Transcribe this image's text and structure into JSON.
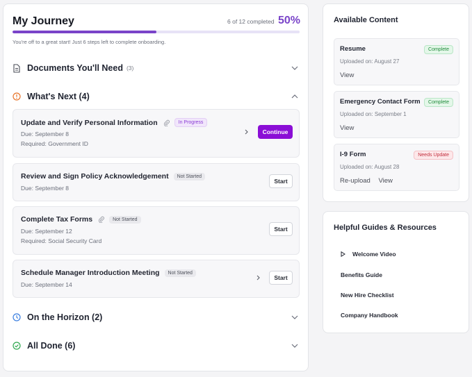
{
  "journey": {
    "title": "My Journey",
    "completed_text": "6 of 12 completed",
    "percent_label": "50%",
    "progress_fraction": 0.5,
    "subtitle": "You're off to a great start! Just 6 steps left to complete onboarding."
  },
  "sections": {
    "documents": {
      "label": "Documents You'll Need",
      "count": "(3)"
    },
    "whats_next": {
      "label": "What's Next (4)"
    },
    "horizon": {
      "label": "On the Horizon (2)"
    },
    "done": {
      "label": "All Done (6)"
    }
  },
  "tasks": [
    {
      "title": "Update and Verify Personal Information",
      "status": "In Progress",
      "due": "Due: September 8",
      "required": "Required: Government ID",
      "button": "Continue"
    },
    {
      "title": "Review and Sign Policy Acknowledgement",
      "status": "Not Started",
      "due": "Due: September 8",
      "button": "Start"
    },
    {
      "title": "Complete Tax Forms",
      "status": "Not Started",
      "due": "Due: September 12",
      "required": "Required: Social Security Card",
      "button": "Start"
    },
    {
      "title": "Schedule Manager Introduction Meeting",
      "status": "Not Started",
      "due": "Due: September 14",
      "button": "Start"
    }
  ],
  "available": {
    "title": "Available Content",
    "items": [
      {
        "name": "Resume",
        "status": "Complete",
        "date": "Uploaded on: August 27",
        "actions": [
          "View"
        ]
      },
      {
        "name": "Emergency Contact Form",
        "status": "Complete",
        "date": "Uploaded on: September 1",
        "actions": [
          "View"
        ]
      },
      {
        "name": "I-9 Form",
        "status": "Needs Update",
        "date": "Uploaded on: August 28",
        "actions": [
          "Re-upload",
          "View"
        ]
      }
    ]
  },
  "guides": {
    "title": "Helpful Guides & Resources",
    "items": [
      "Welcome Video",
      "Benefits Guide",
      "New Hire Checklist",
      "Company Handbook"
    ]
  },
  "colors": {
    "accent": "#7a44c9",
    "primary_button": "#8b0ed6",
    "warning_icon": "#e8742a",
    "info_icon": "#3b7fe0",
    "success_icon": "#2fa84f"
  }
}
